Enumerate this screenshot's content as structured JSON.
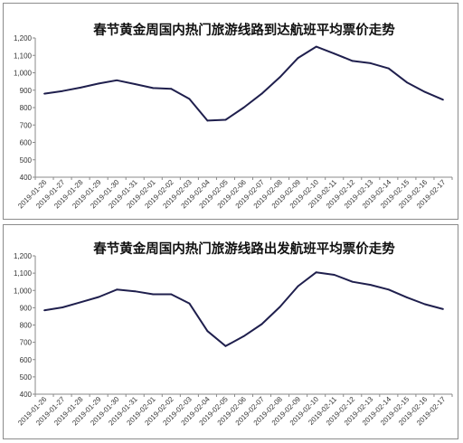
{
  "chart_data": [
    {
      "type": "line",
      "title": "春节黄金周国内热门旅游线路到达航班平均票价走势",
      "xlabel": "",
      "ylabel": "",
      "ylim": [
        400,
        1200
      ],
      "yticks": [
        "400",
        "500",
        "600",
        "700",
        "800",
        "900",
        "1,000",
        "1,100",
        "1,200"
      ],
      "grid": false,
      "legend": "none",
      "line_color": "#1f1f4d",
      "x": [
        "2019-01-26",
        "2019-01-27",
        "2019-01-28",
        "2019-01-29",
        "2019-01-30",
        "2019-01-31",
        "2019-02-01",
        "2019-02-02",
        "2019-02-03",
        "2019-02-04",
        "2019-02-05",
        "2019-02-06",
        "2019-02-07",
        "2019-02-08",
        "2019-02-09",
        "2019-02-10",
        "2019-02-11",
        "2019-02-12",
        "2019-02-13",
        "2019-02-14",
        "2019-02-15",
        "2019-02-16",
        "2019-02-17"
      ],
      "values": [
        880,
        895,
        915,
        938,
        957,
        935,
        912,
        908,
        850,
        725,
        730,
        800,
        880,
        975,
        1085,
        1150,
        1110,
        1068,
        1055,
        1025,
        945,
        890,
        845
      ]
    },
    {
      "type": "line",
      "title": "春节黄金周国内热门旅游线路出发航班平均票价走势",
      "xlabel": "",
      "ylabel": "",
      "ylim": [
        400,
        1200
      ],
      "yticks": [
        "400",
        "500",
        "600",
        "700",
        "800",
        "900",
        "1,000",
        "1,100",
        "1,200"
      ],
      "grid": false,
      "legend": "none",
      "line_color": "#1f1f4d",
      "x": [
        "2019-01-26",
        "2019-01-27",
        "2019-01-28",
        "2019-01-29",
        "2019-01-30",
        "2019-01-31",
        "2019-02-01",
        "2019-02-02",
        "2019-02-03",
        "2019-02-04",
        "2019-02-05",
        "2019-02-06",
        "2019-02-07",
        "2019-02-08",
        "2019-02-09",
        "2019-02-10",
        "2019-02-11",
        "2019-02-12",
        "2019-02-13",
        "2019-02-14",
        "2019-02-15",
        "2019-02-16",
        "2019-02-17"
      ],
      "values": [
        885,
        902,
        932,
        962,
        1005,
        995,
        978,
        978,
        925,
        765,
        678,
        735,
        805,
        905,
        1025,
        1105,
        1090,
        1050,
        1032,
        1005,
        960,
        920,
        892
      ]
    }
  ]
}
